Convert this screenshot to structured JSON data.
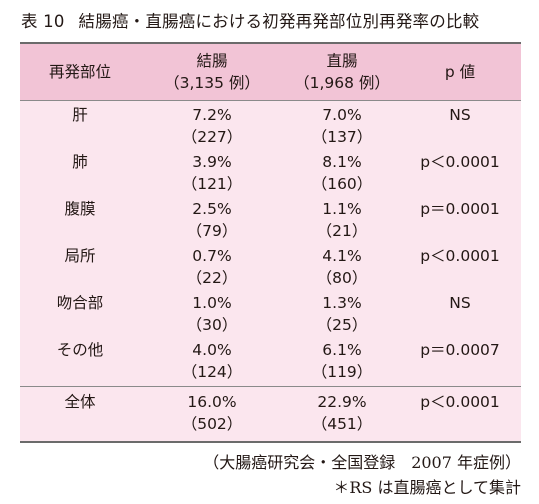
{
  "title": {
    "label": "表 10",
    "text": "結腸癌・直腸癌における初発再発部位別再発率の比較"
  },
  "header": {
    "site": "再発部位",
    "colon": "結腸",
    "colon_n": "（3,135 例）",
    "rectum": "直腸",
    "rectum_n": "（1,968 例）",
    "p": "p 値"
  },
  "rows": [
    {
      "site": "肝",
      "colon_pct": "7.2%",
      "colon_n": "（227）",
      "rectum_pct": "7.0%",
      "rectum_n": "（137）",
      "p": "NS"
    },
    {
      "site": "肺",
      "colon_pct": "3.9%",
      "colon_n": "（121）",
      "rectum_pct": "8.1%",
      "rectum_n": "（160）",
      "p": "p＜0.0001"
    },
    {
      "site": "腹膜",
      "colon_pct": "2.5%",
      "colon_n": "（79）",
      "rectum_pct": "1.1%",
      "rectum_n": "（21）",
      "p": "p＝0.0001"
    },
    {
      "site": "局所",
      "colon_pct": "0.7%",
      "colon_n": "（22）",
      "rectum_pct": "4.1%",
      "rectum_n": "（80）",
      "p": "p＜0.0001"
    },
    {
      "site": "吻合部",
      "colon_pct": "1.0%",
      "colon_n": "（30）",
      "rectum_pct": "1.3%",
      "rectum_n": "（25）",
      "p": "NS"
    },
    {
      "site": "その他",
      "colon_pct": "4.0%",
      "colon_n": "（124）",
      "rectum_pct": "6.1%",
      "rectum_n": "（119）",
      "p": "p＝0.0007"
    }
  ],
  "total": {
    "site": "全体",
    "colon_pct": "16.0%",
    "colon_n": "（502）",
    "rectum_pct": "22.9%",
    "rectum_n": "（451）",
    "p": "p＜0.0001"
  },
  "footnotes": {
    "source": "（大腸癌研究会・全国登録　2007 年症例）",
    "note": "＊RS は直腸癌として集計"
  },
  "colors": {
    "header_bg": "#f2c4d6",
    "body_bg": "#fbe6ee",
    "rule": "#8a8a8a"
  }
}
